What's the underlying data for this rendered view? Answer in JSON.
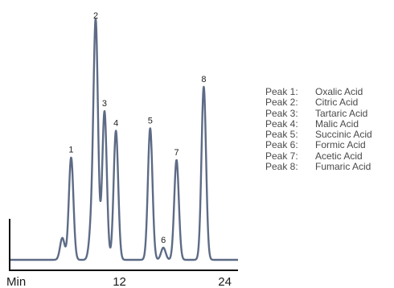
{
  "chart_data": {
    "type": "line",
    "title": "",
    "xlabel": "",
    "ylabel": "",
    "x_tick_labels": [
      {
        "x": 0,
        "label": "Min"
      },
      {
        "x": 12,
        "label": "12"
      },
      {
        "x": 24,
        "label": "24"
      }
    ],
    "xlim": [
      -0.5,
      25.5
    ],
    "ylim": [
      0,
      1.0
    ],
    "grid": false,
    "line_color": "#5d6b86",
    "axis_color": "#111111",
    "small_peaks": [
      {
        "x": 5.5,
        "height": 0.09
      },
      {
        "x": 8.8,
        "height": 0.12
      }
    ],
    "peaks": [
      {
        "label": "1",
        "x": 6.5,
        "height": 0.42
      },
      {
        "label": "2",
        "x": 9.3,
        "height": 0.97
      },
      {
        "label": "3",
        "x": 10.3,
        "height": 0.61
      },
      {
        "label": "4",
        "x": 11.6,
        "height": 0.53
      },
      {
        "label": "5",
        "x": 15.5,
        "height": 0.54
      },
      {
        "label": "6",
        "x": 17.0,
        "height": 0.05
      },
      {
        "label": "7",
        "x": 18.5,
        "height": 0.41
      },
      {
        "label": "8",
        "x": 21.6,
        "height": 0.71
      }
    ],
    "legend": [
      {
        "peak": "Peak 1:",
        "name": "Oxalic Acid"
      },
      {
        "peak": "Peak 2:",
        "name": "Citric Acid"
      },
      {
        "peak": "Peak 3:",
        "name": "Tartaric Acid"
      },
      {
        "peak": "Peak 4:",
        "name": "Malic Acid"
      },
      {
        "peak": "Peak 5:",
        "name": "Succinic Acid"
      },
      {
        "peak": "Peak 6:",
        "name": "Formic Acid"
      },
      {
        "peak": "Peak 7:",
        "name": "Acetic Acid"
      },
      {
        "peak": "Peak 8:",
        "name": "Fumaric Acid"
      }
    ],
    "legend_position": "right"
  }
}
